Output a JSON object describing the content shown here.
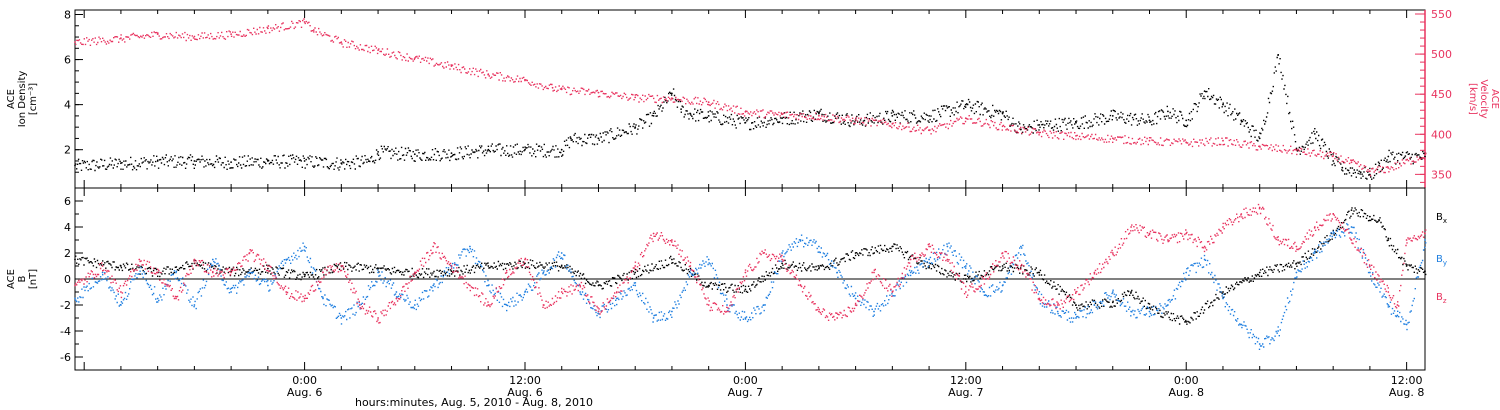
{
  "colors": {
    "black": "#000000",
    "pink": "#e8335f",
    "blue": "#1f7fe0"
  },
  "figure": {
    "x_axis_title": "hours:minutes, Aug.  5, 2010 - Aug.  8, 2010"
  },
  "chart_data": [
    {
      "type": "scatter",
      "panel": "plasma",
      "ylabel_left": [
        "ACE",
        "Ion Density",
        "[cm⁻³]"
      ],
      "ylabel_right": [
        "ACE",
        "Velocity",
        "[km/s]"
      ],
      "ylim_left": [
        0.3,
        8.2
      ],
      "ylim_right": [
        333,
        555
      ],
      "yticks_left": [
        "2",
        "4",
        "6",
        "8"
      ],
      "yticks_right": [
        "350",
        "400",
        "450",
        "500",
        "550"
      ],
      "x_range_hours": [
        -12.5,
        61
      ],
      "series": [
        {
          "name": "Ion Density",
          "color": "#000000",
          "axis": "left",
          "x": [
            -12.5,
            -10,
            -8,
            -6,
            -4,
            -2,
            0,
            2,
            3.5,
            4,
            6,
            8,
            10,
            12,
            14,
            14.5,
            16,
            18,
            19,
            20,
            20.5,
            21,
            22,
            24,
            26,
            28,
            30,
            32,
            34,
            36,
            38,
            39,
            40,
            42,
            44,
            46,
            47,
            48,
            49,
            50,
            51,
            52,
            53,
            54,
            55,
            56,
            56.5,
            57.5,
            58,
            58.5,
            59,
            61
          ],
          "y": [
            1.3,
            1.4,
            1.5,
            1.5,
            1.45,
            1.5,
            1.5,
            1.4,
            1.5,
            1.9,
            1.8,
            1.85,
            2.0,
            2.0,
            2.0,
            2.5,
            2.5,
            3.0,
            3.5,
            4.5,
            3.8,
            3.6,
            3.5,
            3.2,
            3.4,
            3.6,
            3.3,
            3.5,
            3.5,
            4.0,
            3.6,
            2.9,
            3.1,
            3.2,
            3.5,
            3.3,
            3.7,
            3.3,
            4.6,
            4.0,
            3.3,
            2.5,
            6.2,
            2.0,
            2.7,
            1.5,
            1.2,
            1.0,
            0.9,
            1.3,
            1.7,
            1.7
          ]
        },
        {
          "name": "Velocity",
          "color": "#e8335f",
          "axis": "right",
          "x": [
            -12.5,
            -10,
            -8,
            -6,
            -4,
            -2,
            0,
            0.5,
            2,
            4,
            6,
            8,
            10,
            12,
            13.5,
            14,
            16,
            18,
            20,
            22,
            24,
            26,
            28,
            30,
            32,
            34,
            36,
            38,
            40,
            42,
            44,
            46,
            48,
            50,
            52,
            54,
            56,
            57,
            58,
            59,
            61
          ],
          "y": [
            515,
            520,
            525,
            522,
            525,
            532,
            540,
            530,
            515,
            505,
            495,
            485,
            475,
            468,
            458,
            456,
            452,
            446,
            445,
            440,
            428,
            425,
            423,
            418,
            413,
            405,
            420,
            410,
            402,
            398,
            395,
            392,
            390,
            392,
            385,
            380,
            373,
            365,
            354,
            358,
            375
          ]
        }
      ]
    },
    {
      "type": "scatter",
      "panel": "magnetic-field",
      "ylabel_left": [
        "ACE",
        "B",
        "[nT]"
      ],
      "ylim": [
        -7,
        7
      ],
      "yticks": [
        "-6",
        "-4",
        "-2",
        "0",
        "2",
        "4",
        "6"
      ],
      "x_range_hours": [
        -12.5,
        61
      ],
      "legend": [
        "Bx",
        "By",
        "Bz"
      ],
      "series": [
        {
          "name": "Bx",
          "color": "#000000",
          "x": [
            -12.5,
            -10,
            -8,
            -6,
            -4,
            -2,
            0,
            2,
            4,
            6,
            8,
            10,
            12,
            14,
            16,
            18,
            20,
            22,
            24,
            26,
            28,
            30,
            32,
            34,
            36,
            38,
            40,
            42,
            44,
            45,
            46,
            48,
            50,
            52,
            54,
            56,
            57,
            58,
            58.5,
            59,
            60,
            61
          ],
          "y": [
            1.5,
            1.0,
            0.5,
            1.2,
            0.6,
            0.8,
            0.2,
            1.0,
            0.8,
            0.5,
            0.6,
            1.0,
            1.2,
            1.0,
            -0.5,
            0.5,
            1.5,
            -0.5,
            -0.8,
            1.2,
            0.8,
            2.0,
            2.5,
            1.0,
            0.0,
            1.0,
            0.5,
            -2.0,
            -1.8,
            -1.0,
            -2.2,
            -3.3,
            -1.0,
            0.5,
            1.2,
            3.5,
            5.3,
            4.8,
            4.5,
            3.0,
            1.0,
            0.6
          ]
        },
        {
          "name": "By",
          "color": "#1f7fe0",
          "x": [
            -12.5,
            -11,
            -10,
            -9,
            -8,
            -7,
            -6,
            -5,
            -4,
            -3,
            -2,
            -1,
            0,
            1,
            2,
            3,
            4,
            5,
            6,
            7,
            8,
            9,
            10,
            11,
            12,
            13,
            14,
            15,
            16,
            17,
            18,
            19,
            20,
            21,
            22,
            23,
            24,
            25,
            26,
            27,
            28,
            29,
            30,
            31,
            32,
            33,
            34,
            35,
            36,
            37,
            38,
            39,
            40,
            41,
            42,
            43,
            44,
            45,
            46,
            47,
            48,
            49,
            50,
            51,
            52,
            53,
            54,
            55,
            56,
            57,
            58,
            59,
            59.5,
            60,
            61
          ],
          "y": [
            -1.5,
            0.5,
            -2.0,
            1.0,
            -1.5,
            0.5,
            -2.0,
            1.5,
            -1.0,
            0.5,
            -0.5,
            1.5,
            2.5,
            -1.5,
            -3.0,
            -2.0,
            0.5,
            -1.0,
            -2.0,
            -0.5,
            1.0,
            2.5,
            -0.5,
            -2.0,
            -1.0,
            0.5,
            2.0,
            -1.0,
            -2.5,
            -1.5,
            -0.5,
            -3.0,
            -2.5,
            0.5,
            1.5,
            -2.0,
            -3.0,
            -2.0,
            2.0,
            3.0,
            2.5,
            0.5,
            -1.5,
            -2.5,
            -1.0,
            0.5,
            1.5,
            2.5,
            1.0,
            -1.0,
            -0.5,
            2.5,
            -1.5,
            -2.5,
            -3.0,
            -2.0,
            -1.0,
            -2.5,
            -2.5,
            -2.0,
            0.5,
            1.5,
            -1.5,
            -3.5,
            -5.0,
            -4.0,
            0.5,
            2.0,
            3.5,
            4.0,
            0.5,
            -2.0,
            -2.8,
            -3.5,
            3.0
          ]
        },
        {
          "name": "Bz",
          "color": "#e8335f",
          "x": [
            -12.5,
            -11,
            -10,
            -9,
            -8,
            -7,
            -6,
            -5,
            -4,
            -3,
            -2,
            -1,
            0,
            1,
            2,
            3,
            4,
            5,
            6,
            7,
            8,
            9,
            10,
            11,
            12,
            13,
            14,
            15,
            16,
            17,
            18,
            19,
            20,
            21,
            22,
            23,
            24,
            25,
            26,
            27,
            28,
            29,
            30,
            31,
            32,
            33,
            34,
            35,
            36,
            37,
            38,
            39,
            40,
            41,
            42,
            43,
            44,
            45,
            46,
            47,
            48,
            49,
            50,
            51,
            52,
            53,
            54,
            55,
            56,
            57,
            58,
            59,
            59.5,
            60,
            61
          ],
          "y": [
            -0.5,
            1.0,
            -1.0,
            1.5,
            0.5,
            -1.5,
            1.5,
            0.5,
            0.5,
            2.0,
            1.0,
            -1.0,
            -1.5,
            0.5,
            1.0,
            -2.0,
            -3.0,
            -1.5,
            0.5,
            2.5,
            1.0,
            -0.5,
            -2.0,
            0.5,
            1.5,
            -2.0,
            -1.0,
            -0.5,
            -2.5,
            -1.0,
            1.0,
            3.5,
            3.0,
            1.0,
            -2.0,
            -2.5,
            0.5,
            2.0,
            1.5,
            -0.5,
            -2.5,
            -3.0,
            -2.0,
            0.5,
            -1.0,
            1.5,
            2.5,
            1.5,
            -1.0,
            0.0,
            2.0,
            1.0,
            -1.5,
            -2.0,
            -1.0,
            0.5,
            2.0,
            4.0,
            3.5,
            3.0,
            3.5,
            2.5,
            4.0,
            5.0,
            5.5,
            3.0,
            2.5,
            4.0,
            5.0,
            3.0,
            1.0,
            -1.0,
            -2.0,
            3.0,
            3.5
          ]
        }
      ]
    }
  ],
  "x_ticks": [
    {
      "hours": 0,
      "time": "0:00",
      "date": "Aug. 6"
    },
    {
      "hours": 12,
      "time": "12:00",
      "date": "Aug. 6"
    },
    {
      "hours": 24,
      "time": "0:00",
      "date": "Aug. 7"
    },
    {
      "hours": 36,
      "time": "12:00",
      "date": "Aug. 7"
    },
    {
      "hours": 48,
      "time": "0:00",
      "date": "Aug. 8"
    },
    {
      "hours": 60,
      "time": "12:00",
      "date": "Aug. 8"
    }
  ]
}
